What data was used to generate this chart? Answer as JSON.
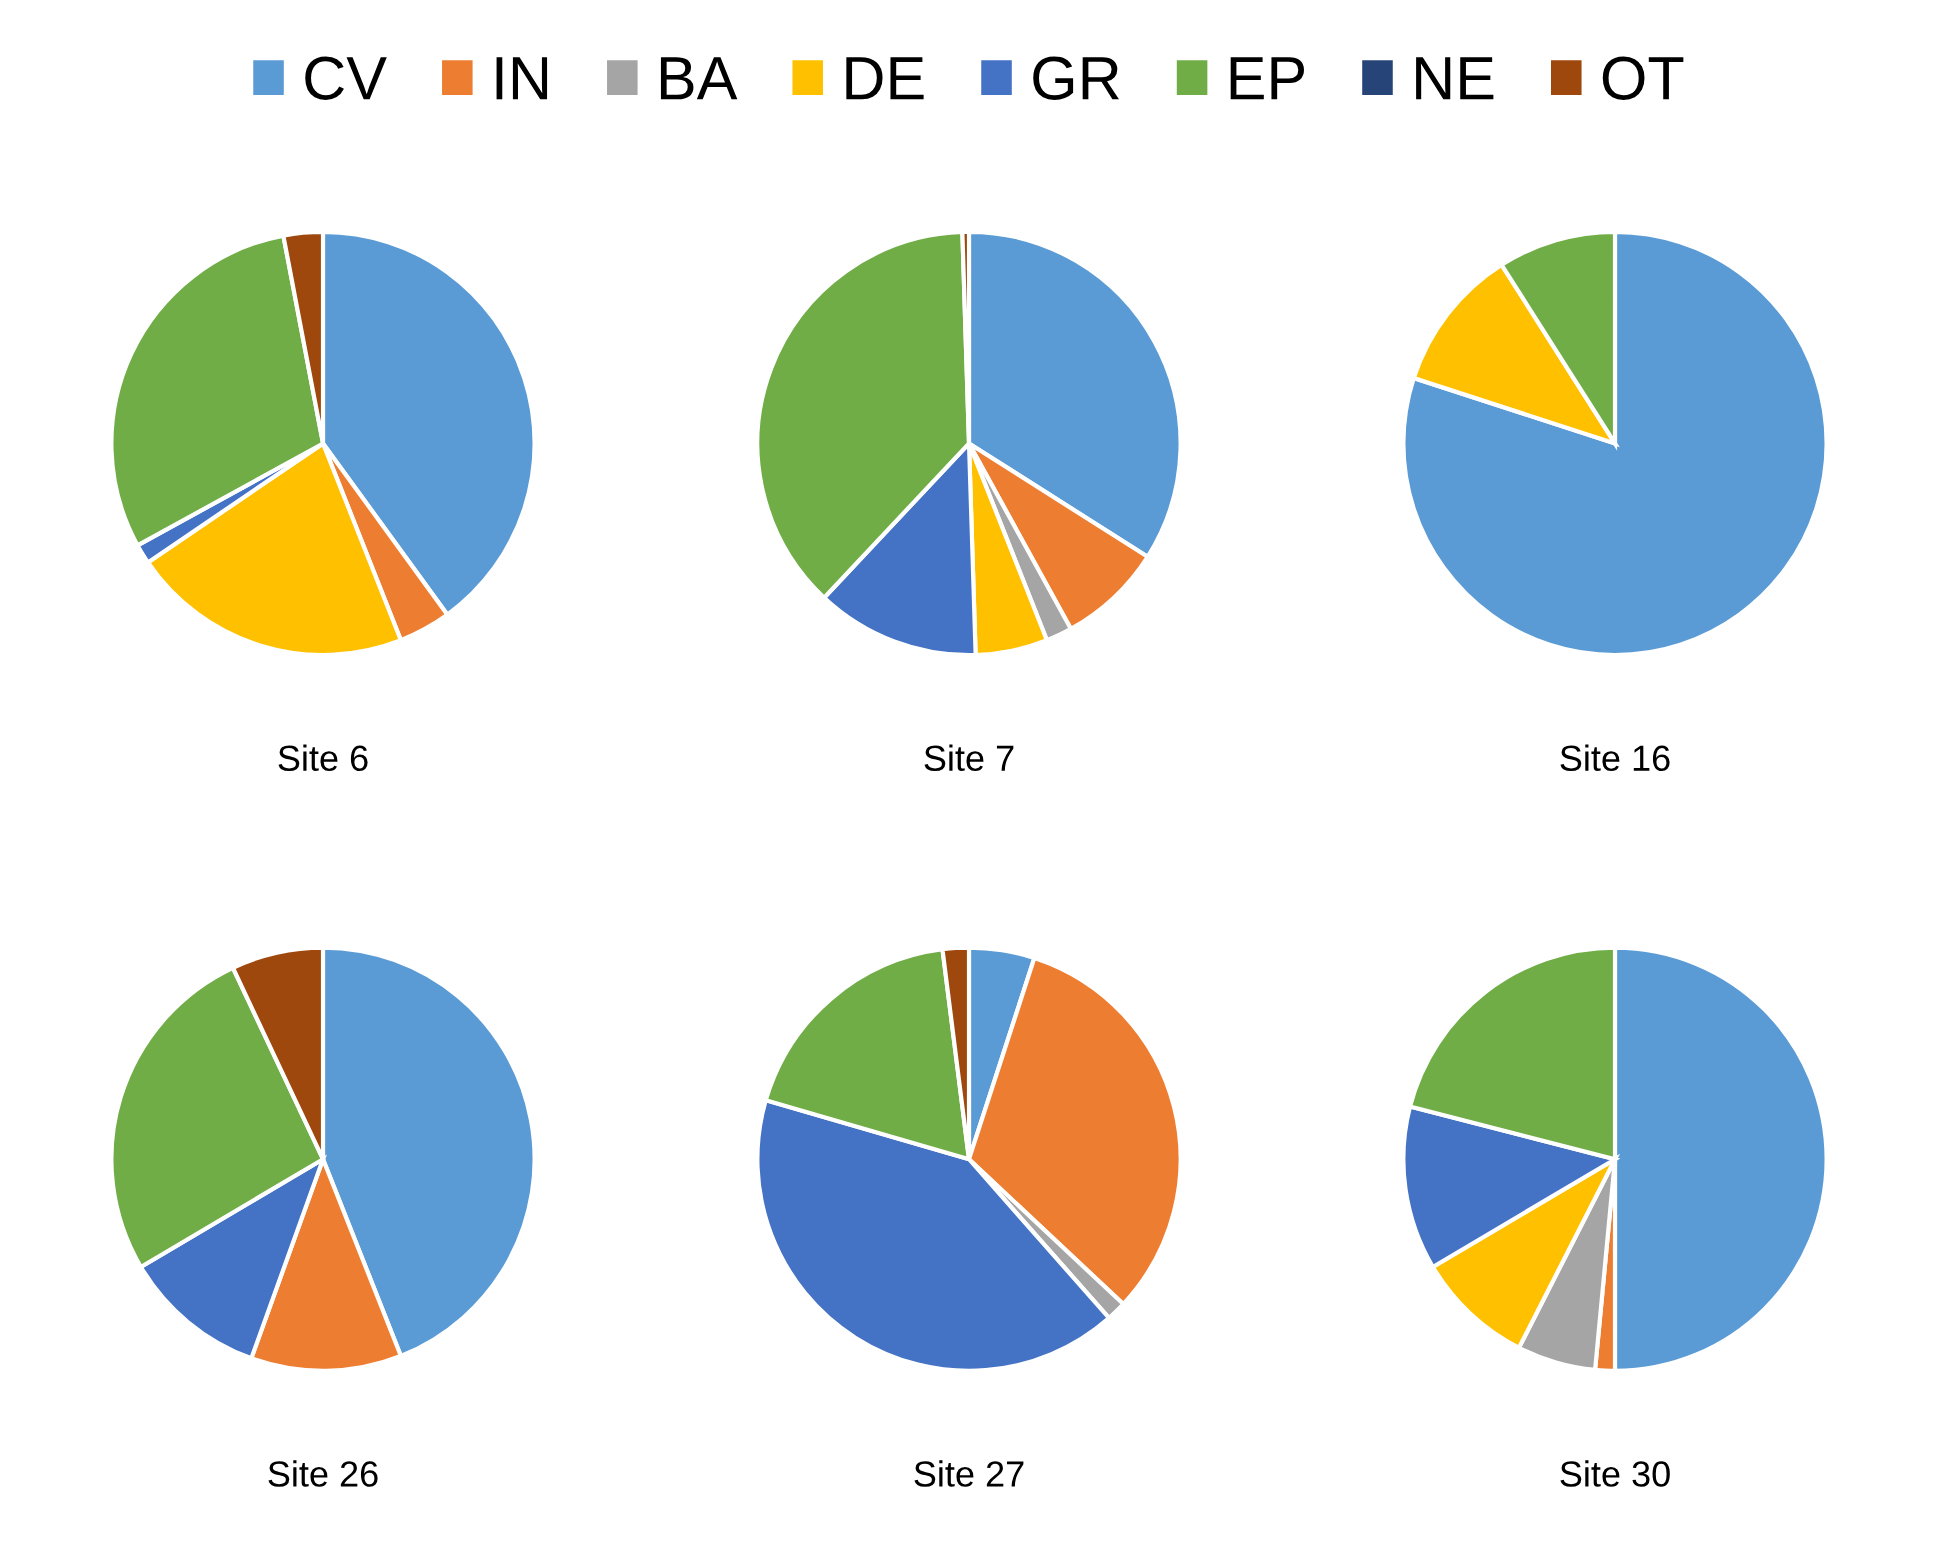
{
  "chart_data": [
    {
      "type": "pie",
      "title": "Site 6",
      "legend": "top",
      "categories": [
        "CV",
        "IN",
        "BA",
        "DE",
        "GR",
        "EP",
        "NE",
        "OT"
      ],
      "colors": [
        "#5b9bd5",
        "#ed7d31",
        "#a5a5a5",
        "#ffc000",
        "#4472c4",
        "#70ad47",
        "#264478",
        "#9e480e"
      ],
      "values": [
        40,
        4,
        0,
        21.5,
        1.5,
        30,
        0,
        3
      ]
    },
    {
      "type": "pie",
      "title": "Site 7",
      "colors": [
        "#5b9bd5",
        "#ed7d31",
        "#a5a5a5",
        "#ffc000",
        "#4472c4",
        "#70ad47",
        "#264478",
        "#9e480e"
      ],
      "values": [
        34,
        8,
        2,
        5.5,
        12.5,
        37.5,
        0,
        0.5
      ]
    },
    {
      "type": "pie",
      "title": "Site 16",
      "colors": [
        "#5b9bd5",
        "#ed7d31",
        "#a5a5a5",
        "#ffc000",
        "#4472c4",
        "#70ad47",
        "#264478",
        "#9e480e"
      ],
      "values": [
        80,
        0,
        0,
        11,
        0,
        9,
        0,
        0
      ]
    },
    {
      "type": "pie",
      "title": "Site 26",
      "colors": [
        "#5b9bd5",
        "#ed7d31",
        "#a5a5a5",
        "#ffc000",
        "#4472c4",
        "#70ad47",
        "#264478",
        "#9e480e"
      ],
      "values": [
        44,
        11.5,
        0,
        0,
        11,
        26.5,
        0,
        7
      ]
    },
    {
      "type": "pie",
      "title": "Site 27",
      "colors": [
        "#5b9bd5",
        "#ed7d31",
        "#a5a5a5",
        "#ffc000",
        "#4472c4",
        "#70ad47",
        "#264478",
        "#9e480e"
      ],
      "values": [
        5,
        32,
        1.5,
        0,
        41,
        18.5,
        0,
        2
      ]
    },
    {
      "type": "pie",
      "title": "Site 30",
      "colors": [
        "#5b9bd5",
        "#ed7d31",
        "#a5a5a5",
        "#ffc000",
        "#4472c4",
        "#70ad47",
        "#264478",
        "#9e480e"
      ],
      "values": [
        50,
        1.5,
        6,
        9,
        12.5,
        21,
        0,
        0
      ]
    }
  ]
}
